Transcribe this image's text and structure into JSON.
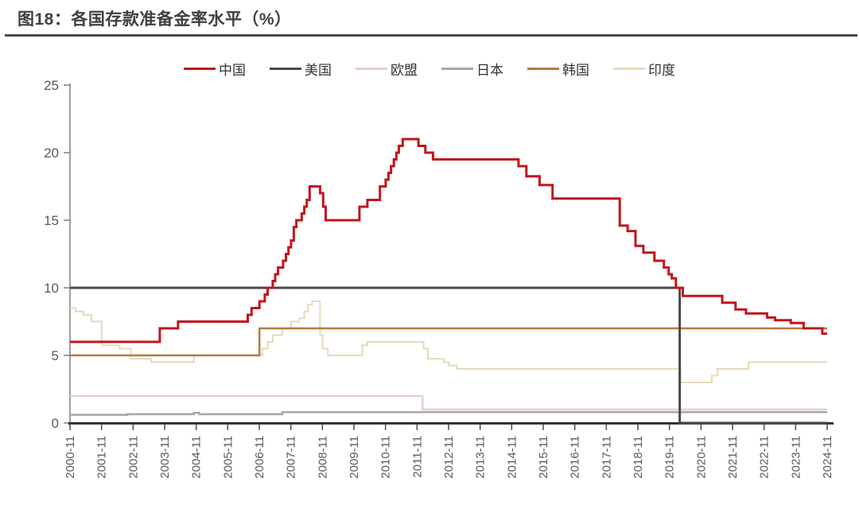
{
  "figure": {
    "title": "图18：各国存款准备金率水平（%）"
  },
  "chart_data": {
    "type": "line",
    "title": "各国存款准备金率水平（%）",
    "subtype": "step-line",
    "grid": false,
    "legend_position": "top-center",
    "x_axis": {
      "start": 2000.875,
      "end": 2024.875,
      "tick_labels": [
        "2000-11",
        "2001-11",
        "2002-11",
        "2003-11",
        "2004-11",
        "2005-11",
        "2006-11",
        "2007-11",
        "2008-11",
        "2009-11",
        "2010-11",
        "2011-11",
        "2012-11",
        "2013-11",
        "2014-11",
        "2015-11",
        "2016-11",
        "2017-11",
        "2018-11",
        "2019-11",
        "2020-11",
        "2021-11",
        "2022-11",
        "2023-11",
        "2024-11"
      ]
    },
    "y_axis": {
      "ticks": [
        0,
        5,
        10,
        15,
        20,
        25
      ],
      "range": [
        0,
        25
      ]
    },
    "colors": {
      "axis": "#7f7f7f",
      "x_axis_line": "#333333",
      "tick_label": "#595959",
      "title": "#3f3f3f"
    },
    "legend_order": [
      "china",
      "us",
      "eu",
      "japan",
      "korea",
      "india"
    ],
    "draw_order": [
      "eu",
      "japan",
      "india",
      "korea",
      "us",
      "china"
    ],
    "series": [
      {
        "id": "china",
        "name": "中国",
        "color": "#C0161C",
        "width": 3,
        "step_points": [
          [
            2000.875,
            6
          ],
          [
            2003.72,
            7
          ],
          [
            2004.3,
            7.5
          ],
          [
            2006.51,
            8
          ],
          [
            2006.63,
            8.5
          ],
          [
            2006.88,
            9
          ],
          [
            2007.05,
            9.5
          ],
          [
            2007.14,
            10
          ],
          [
            2007.3,
            10.5
          ],
          [
            2007.38,
            11
          ],
          [
            2007.47,
            11.5
          ],
          [
            2007.63,
            12
          ],
          [
            2007.72,
            12.5
          ],
          [
            2007.8,
            13
          ],
          [
            2007.88,
            13.5
          ],
          [
            2007.97,
            14.5
          ],
          [
            2008.05,
            15
          ],
          [
            2008.22,
            15.5
          ],
          [
            2008.3,
            16
          ],
          [
            2008.38,
            16.5
          ],
          [
            2008.47,
            17.5
          ],
          [
            2008.8,
            17
          ],
          [
            2008.9,
            16
          ],
          [
            2008.98,
            15
          ],
          [
            2010.05,
            16
          ],
          [
            2010.3,
            16.5
          ],
          [
            2010.7,
            17.5
          ],
          [
            2010.88,
            18
          ],
          [
            2010.97,
            18.5
          ],
          [
            2011.05,
            19
          ],
          [
            2011.14,
            19.5
          ],
          [
            2011.22,
            20
          ],
          [
            2011.3,
            20.5
          ],
          [
            2011.42,
            21
          ],
          [
            2011.92,
            20.5
          ],
          [
            2012.14,
            20
          ],
          [
            2012.38,
            19.5
          ],
          [
            2015.09,
            19
          ],
          [
            2015.34,
            18.25
          ],
          [
            2015.76,
            17.6
          ],
          [
            2016.17,
            16.6
          ],
          [
            2018.3,
            14.6
          ],
          [
            2018.55,
            14.2
          ],
          [
            2018.8,
            13.1
          ],
          [
            2019.05,
            12.6
          ],
          [
            2019.4,
            12
          ],
          [
            2019.7,
            11.5
          ],
          [
            2019.85,
            11
          ],
          [
            2019.95,
            10.7
          ],
          [
            2020.08,
            10
          ],
          [
            2020.3,
            9.4
          ],
          [
            2021.55,
            8.9
          ],
          [
            2021.97,
            8.4
          ],
          [
            2022.3,
            8.1
          ],
          [
            2022.97,
            7.8
          ],
          [
            2023.22,
            7.6
          ],
          [
            2023.72,
            7.4
          ],
          [
            2024.13,
            7
          ],
          [
            2024.72,
            6.6
          ]
        ]
      },
      {
        "id": "us",
        "name": "美国",
        "color": "#4a4a4a",
        "width": 3,
        "step_points": [
          [
            2000.875,
            10
          ],
          [
            2020.2,
            0
          ]
        ]
      },
      {
        "id": "eu",
        "name": "欧盟",
        "color": "#E8CEC9",
        "width": 2.5,
        "step_points": [
          [
            2000.875,
            2
          ],
          [
            2012.05,
            1
          ]
        ]
      },
      {
        "id": "japan",
        "name": "日本",
        "color": "#A6A6A6",
        "width": 2.5,
        "step_points": [
          [
            2000.875,
            0.6
          ],
          [
            2002.7,
            0.65
          ],
          [
            2004.8,
            0.75
          ],
          [
            2004.97,
            0.65
          ],
          [
            2007.6,
            0.8
          ]
        ]
      },
      {
        "id": "korea",
        "name": "韩国",
        "color": "#B67A3E",
        "width": 2.5,
        "step_points": [
          [
            2000.875,
            5
          ],
          [
            2006.88,
            7
          ]
        ]
      },
      {
        "id": "india",
        "name": "印度",
        "color": "#E6DAB8",
        "width": 2,
        "step_points": [
          [
            2000.875,
            8.5
          ],
          [
            2001.05,
            8.25
          ],
          [
            2001.3,
            8
          ],
          [
            2001.55,
            7.5
          ],
          [
            2001.88,
            5.75
          ],
          [
            2002.45,
            5.5
          ],
          [
            2002.8,
            4.75
          ],
          [
            2003.45,
            4.5
          ],
          [
            2004.8,
            5
          ],
          [
            2006.97,
            5.5
          ],
          [
            2007.14,
            6
          ],
          [
            2007.3,
            6.5
          ],
          [
            2007.6,
            7
          ],
          [
            2007.88,
            7.5
          ],
          [
            2008.14,
            7.75
          ],
          [
            2008.3,
            8.25
          ],
          [
            2008.42,
            8.75
          ],
          [
            2008.55,
            9
          ],
          [
            2008.8,
            6.5
          ],
          [
            2008.88,
            5.5
          ],
          [
            2009.05,
            5
          ],
          [
            2010.14,
            5.75
          ],
          [
            2010.3,
            6
          ],
          [
            2012.08,
            5.5
          ],
          [
            2012.22,
            4.75
          ],
          [
            2012.72,
            4.5
          ],
          [
            2012.88,
            4.25
          ],
          [
            2013.14,
            4
          ],
          [
            2020.22,
            3
          ],
          [
            2021.22,
            3.5
          ],
          [
            2021.4,
            4
          ],
          [
            2022.38,
            4.5
          ]
        ]
      }
    ]
  }
}
